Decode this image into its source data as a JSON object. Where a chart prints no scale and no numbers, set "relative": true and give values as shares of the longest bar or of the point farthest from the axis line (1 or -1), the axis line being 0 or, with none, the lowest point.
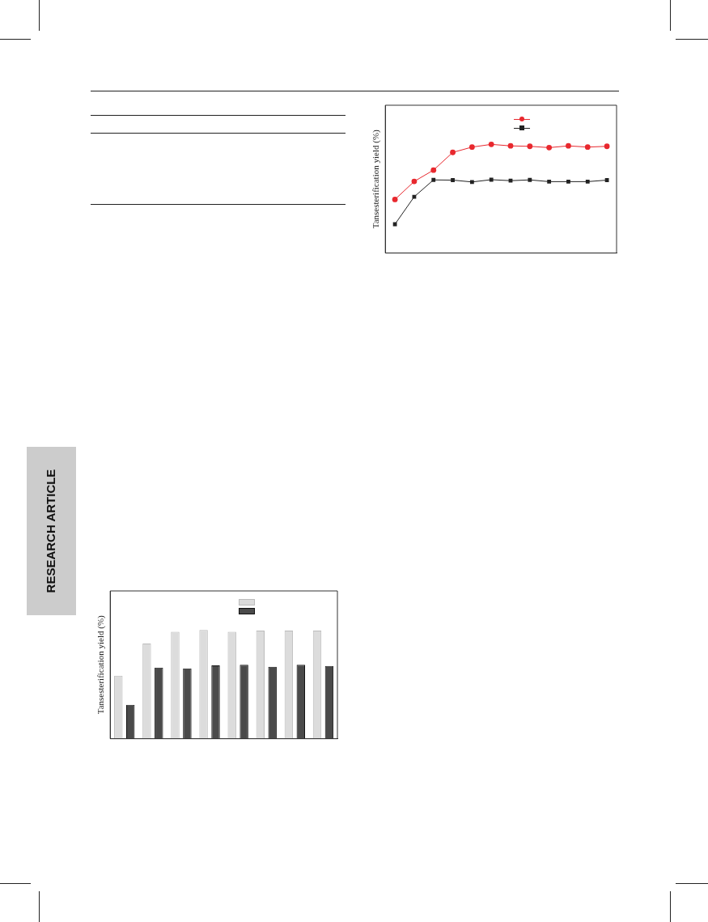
{
  "chart_data": [
    {
      "type": "line",
      "ylabel": "Tansesterification yield (%)",
      "relative": true,
      "grid": false,
      "line_style": "solid",
      "categories": [
        null,
        null,
        null,
        null,
        null,
        null,
        null,
        null,
        null,
        null,
        null,
        null
      ],
      "series": [
        {
          "color": "#e8282e",
          "marker": "circle",
          "values": [
            0.493,
            0.659,
            0.763,
            0.926,
            0.975,
            1,
            0.986,
            0.982,
            0.97,
            0.986,
            0.975,
            0.982
          ]
        },
        {
          "color": "#222222",
          "marker": "square",
          "values": [
            0.265,
            0.518,
            0.673,
            0.671,
            0.654,
            0.675,
            0.666,
            0.673,
            0.657,
            0.657,
            0.657,
            0.671
          ]
        }
      ],
      "annotations": [
        "RESEARCH ARTICLE"
      ]
    },
    {
      "type": "bar",
      "ylabel": "Tansesterification yield (%)",
      "relative": true,
      "grid": false,
      "categories": [
        null,
        null,
        null,
        null,
        null,
        null,
        null,
        null
      ],
      "series": [
        {
          "color": "#dcdcdc",
          "values": [
            0.58,
            0.875,
            0.984,
            1,
            0.984,
            0.995,
            0.995,
            0.995
          ]
        },
        {
          "color": "#4a4a4a",
          "values": [
            0.312,
            0.654,
            0.647,
            0.674,
            0.681,
            0.661,
            0.681,
            0.67
          ]
        }
      ]
    }
  ]
}
